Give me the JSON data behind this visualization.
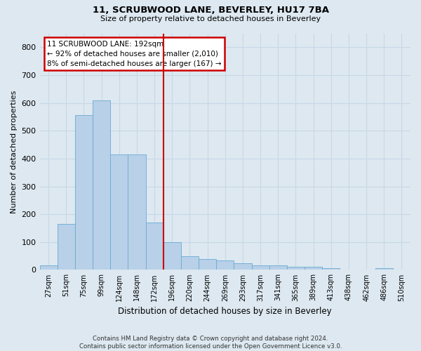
{
  "title1": "11, SCRUBWOOD LANE, BEVERLEY, HU17 7BA",
  "title2": "Size of property relative to detached houses in Beverley",
  "xlabel": "Distribution of detached houses by size in Beverley",
  "ylabel": "Number of detached properties",
  "footnote": "Contains HM Land Registry data © Crown copyright and database right 2024.\nContains public sector information licensed under the Open Government Licence v3.0.",
  "bin_labels": [
    "27sqm",
    "51sqm",
    "75sqm",
    "99sqm",
    "124sqm",
    "148sqm",
    "172sqm",
    "196sqm",
    "220sqm",
    "244sqm",
    "269sqm",
    "293sqm",
    "317sqm",
    "341sqm",
    "365sqm",
    "389sqm",
    "413sqm",
    "438sqm",
    "462sqm",
    "486sqm",
    "510sqm"
  ],
  "bar_values": [
    15,
    165,
    555,
    610,
    415,
    415,
    170,
    100,
    50,
    40,
    35,
    25,
    15,
    15,
    10,
    10,
    5,
    2,
    2,
    5,
    2
  ],
  "bar_color": "#b8d0e8",
  "bar_edge_color": "#6aaad4",
  "property_line_x": 7.0,
  "annotation_title": "11 SCRUBWOOD LANE: 192sqm",
  "annotation_line1": "← 92% of detached houses are smaller (2,010)",
  "annotation_line2": "8% of semi-detached houses are larger (167) →",
  "annotation_box_color": "#ffffff",
  "annotation_box_edge_color": "#cc0000",
  "vline_color": "#cc0000",
  "grid_color": "#c8d8e8",
  "bg_color": "#dde8f0",
  "ylim": [
    0,
    850
  ],
  "yticks": [
    0,
    100,
    200,
    300,
    400,
    500,
    600,
    700,
    800
  ]
}
